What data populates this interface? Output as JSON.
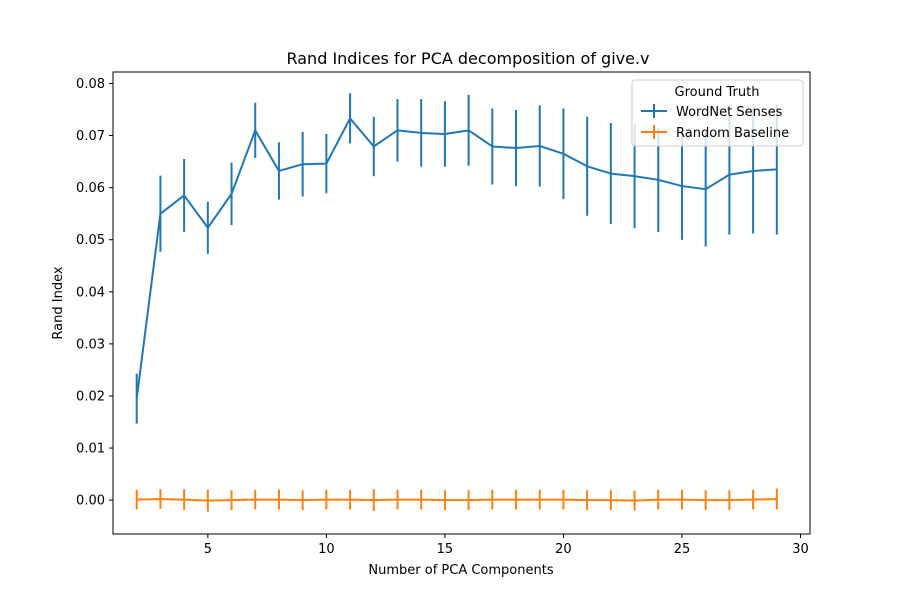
{
  "chart_data": {
    "type": "line",
    "title": "Rand Indices for PCA decomposition of give.v",
    "xlabel": "Number of PCA Components",
    "ylabel": "Rand Index",
    "xlim": [
      1,
      30.4
    ],
    "ylim": [
      -0.0065,
      0.0822
    ],
    "xticks": [
      5,
      10,
      15,
      20,
      25,
      30
    ],
    "xtick_labels": [
      "5",
      "10",
      "15",
      "20",
      "25",
      "30"
    ],
    "yticks": [
      0.0,
      0.01,
      0.02,
      0.03,
      0.04,
      0.05,
      0.06,
      0.07,
      0.08
    ],
    "ytick_labels": [
      "0.00",
      "0.01",
      "0.02",
      "0.03",
      "0.04",
      "0.05",
      "0.06",
      "0.07",
      "0.08"
    ],
    "grid": false,
    "legend": {
      "title": "Ground Truth",
      "placement": "top-right"
    },
    "x": [
      2,
      3,
      4,
      5,
      6,
      7,
      8,
      9,
      10,
      11,
      12,
      13,
      14,
      15,
      16,
      17,
      18,
      19,
      20,
      21,
      22,
      23,
      24,
      25,
      26,
      27,
      28,
      29
    ],
    "series": [
      {
        "name": "WordNet Senses",
        "color": "#1f77b4",
        "values": [
          0.0195,
          0.055,
          0.0585,
          0.0523,
          0.0588,
          0.071,
          0.0632,
          0.0645,
          0.0646,
          0.0733,
          0.0679,
          0.071,
          0.0705,
          0.0703,
          0.071,
          0.0679,
          0.0676,
          0.068,
          0.0665,
          0.0641,
          0.0627,
          0.0622,
          0.0615,
          0.0603,
          0.0597,
          0.0625,
          0.0632,
          0.0635
        ],
        "errors": [
          0.0048,
          0.0073,
          0.007,
          0.005,
          0.006,
          0.0053,
          0.0055,
          0.0062,
          0.0057,
          0.0048,
          0.0057,
          0.006,
          0.0065,
          0.0063,
          0.0068,
          0.0073,
          0.0073,
          0.0078,
          0.0087,
          0.0095,
          0.0097,
          0.01,
          0.01,
          0.0103,
          0.011,
          0.0115,
          0.012,
          0.0125
        ]
      },
      {
        "name": "Random Baseline",
        "color": "#ff7f0e",
        "values": [
          0.0001,
          0.0002,
          0.0001,
          -0.0001,
          0.0,
          0.0001,
          0.0001,
          0.0,
          0.0001,
          0.0001,
          0.0,
          0.0001,
          0.0001,
          0.0,
          0.0,
          0.0001,
          0.0001,
          0.0001,
          0.0001,
          0.0,
          0.0,
          -0.0001,
          0.0001,
          0.0001,
          0.0,
          0.0,
          0.0001,
          0.0002
        ],
        "errors": [
          0.0019,
          0.0019,
          0.002,
          0.0021,
          0.0019,
          0.0019,
          0.0019,
          0.0019,
          0.0019,
          0.0019,
          0.0021,
          0.0019,
          0.0019,
          0.0019,
          0.0019,
          0.0019,
          0.0019,
          0.0019,
          0.0019,
          0.0019,
          0.0019,
          0.0019,
          0.0019,
          0.0019,
          0.0019,
          0.0019,
          0.0019,
          0.002
        ]
      }
    ]
  }
}
